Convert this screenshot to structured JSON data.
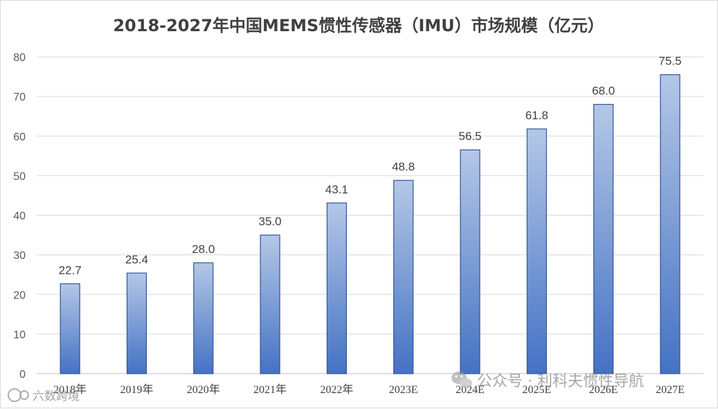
{
  "chart_data": {
    "type": "bar",
    "title": "2018-2027年中国MEMS惯性传感器（IMU）市场规模（亿元）",
    "categories": [
      "2018年",
      "2019年",
      "2020年",
      "2021年",
      "2022年",
      "2023E",
      "2024E",
      "2025E",
      "2026E",
      "2027E"
    ],
    "values": [
      22.7,
      25.4,
      28.0,
      35.0,
      43.1,
      48.8,
      56.5,
      61.8,
      68.0,
      75.5
    ],
    "value_labels": [
      "22.7",
      "25.4",
      "28.0",
      "35.0",
      "43.1",
      "48.8",
      "56.5",
      "61.8",
      "68.0",
      "75.5"
    ],
    "y_ticks": [
      0,
      10,
      20,
      30,
      40,
      50,
      60,
      70,
      80
    ],
    "ylim": [
      0,
      80
    ],
    "xlabel": "",
    "ylabel": "",
    "grid": true,
    "legend": "none",
    "colors": {
      "bar_top": "#b4c7e7",
      "bar_bottom": "#4472c4",
      "bar_border": "#2f5597",
      "grid": "#d9d9d9",
      "axis": "#bfbfbf"
    }
  },
  "watermarks": {
    "right": "公众号 · 利科夫惯性导航",
    "left": "六数跨境"
  }
}
